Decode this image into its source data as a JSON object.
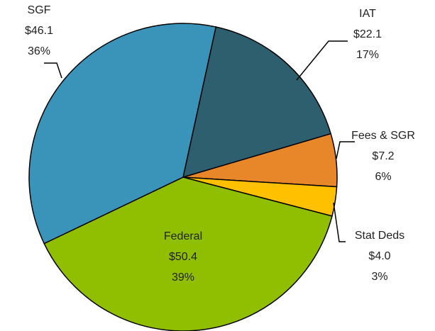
{
  "chart_data": {
    "type": "pie",
    "categories": [
      "IAT",
      "Fees & SGR",
      "Stat Deds",
      "Federal",
      "SGF"
    ],
    "values": [
      22.1,
      7.2,
      4.0,
      50.4,
      46.1
    ],
    "value_labels": [
      "$22.1",
      "$7.2",
      "$4.0",
      "$50.4",
      "$46.1"
    ],
    "percents": [
      17,
      6,
      3,
      39,
      36
    ],
    "percent_labels": [
      "17%",
      "6%",
      "3%",
      "39%",
      "36%"
    ],
    "colors": [
      "#2e5f6e",
      "#e8872a",
      "#ffc000",
      "#8fbf00",
      "#3a93b8"
    ]
  }
}
